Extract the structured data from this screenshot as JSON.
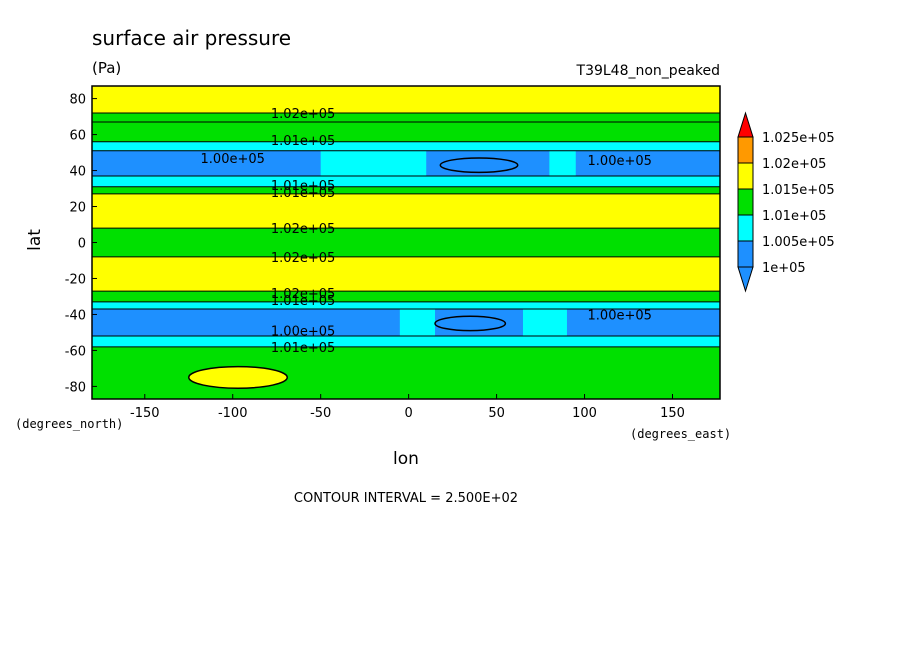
{
  "chart_data": {
    "type": "heatmap",
    "title": "surface air pressure",
    "units": "(Pa)",
    "run_label": "T39L48_non_peaked",
    "xlabel": "lon",
    "ylabel": "lat",
    "x_units": "(degrees_east)",
    "y_units": "(degrees_north)",
    "xlim": [
      -180,
      177
    ],
    "ylim": [
      -87,
      87
    ],
    "x_ticks": [
      -150,
      -100,
      -50,
      0,
      50,
      100,
      150
    ],
    "y_ticks": [
      -80,
      -60,
      -40,
      -20,
      0,
      20,
      40,
      60,
      80
    ],
    "footer": "CONTOUR INTERVAL = 2.500E+02",
    "colors": {
      "c1": "#1e90ff",
      "c2": "#00ffff",
      "c3": "#00e000",
      "c4": "#ffff00",
      "c5": "#ff9900",
      "c6": "#ff0000",
      "border": "#000000"
    },
    "legend": {
      "levels": [
        "1.025e+05",
        "1.02e+05",
        "1.015e+05",
        "1.01e+05",
        "1.005e+05",
        "1e+05"
      ]
    },
    "bands": [
      {
        "lat": [
          72,
          87
        ],
        "level": 4
      },
      {
        "lat": [
          67,
          72
        ],
        "level": 3
      },
      {
        "lat": [
          56,
          67
        ],
        "level": 3
      },
      {
        "lat": [
          51,
          56
        ],
        "level": 2
      },
      {
        "lat": [
          37,
          51
        ],
        "level": 1
      },
      {
        "lat": [
          31,
          37
        ],
        "level": 2
      },
      {
        "lat": [
          27,
          31
        ],
        "level": 3
      },
      {
        "lat": [
          8,
          27
        ],
        "level": 4
      },
      {
        "lat": [
          -8,
          8
        ],
        "level": 3
      },
      {
        "lat": [
          -27,
          -8
        ],
        "level": 4
      },
      {
        "lat": [
          -33,
          -27
        ],
        "level": 3
      },
      {
        "lat": [
          -37,
          -33
        ],
        "level": 2
      },
      {
        "lat": [
          -52,
          -37
        ],
        "level": 1
      },
      {
        "lat": [
          -58,
          -52
        ],
        "level": 2
      },
      {
        "lat": [
          -87,
          -58
        ],
        "level": 3
      }
    ],
    "cyan_gaps": [
      {
        "lon": [
          -50,
          10
        ],
        "lat": [
          37,
          51
        ]
      },
      {
        "lon": [
          80,
          95
        ],
        "lat": [
          37,
          51
        ]
      },
      {
        "lon": [
          -5,
          15
        ],
        "lat": [
          -52,
          -37
        ]
      },
      {
        "lon": [
          65,
          90
        ],
        "lat": [
          -52,
          -37
        ]
      }
    ],
    "blobs": [
      {
        "lon": -97,
        "lat": -75,
        "rx": 28,
        "ry": 6,
        "level": 4
      },
      {
        "lon": 40,
        "lat": 43,
        "rx": 22,
        "ry": 4,
        "level": 1
      },
      {
        "lon": 35,
        "lat": -45,
        "rx": 20,
        "ry": 4,
        "level": 1
      }
    ],
    "contour_labels": [
      {
        "text": "1.02e+05",
        "lon": -60,
        "lat": 72
      },
      {
        "text": "1.01e+05",
        "lon": -60,
        "lat": 57
      },
      {
        "text": "1.00e+05",
        "lon": -100,
        "lat": 47
      },
      {
        "text": "1.00e+05",
        "lon": 120,
        "lat": 46
      },
      {
        "text": "1.01e+05",
        "lon": -60,
        "lat": 32
      },
      {
        "text": "1.01e+05",
        "lon": -60,
        "lat": 28
      },
      {
        "text": "1.02e+05",
        "lon": -60,
        "lat": 8
      },
      {
        "text": "1.02e+05",
        "lon": -60,
        "lat": -8
      },
      {
        "text": "1.02e+05",
        "lon": -60,
        "lat": -28
      },
      {
        "text": "1.01e+05",
        "lon": -60,
        "lat": -32
      },
      {
        "text": "1.00e+05",
        "lon": 120,
        "lat": -40
      },
      {
        "text": "1.00e+05",
        "lon": -60,
        "lat": -49
      },
      {
        "text": "1.01e+05",
        "lon": -60,
        "lat": -58
      }
    ]
  }
}
